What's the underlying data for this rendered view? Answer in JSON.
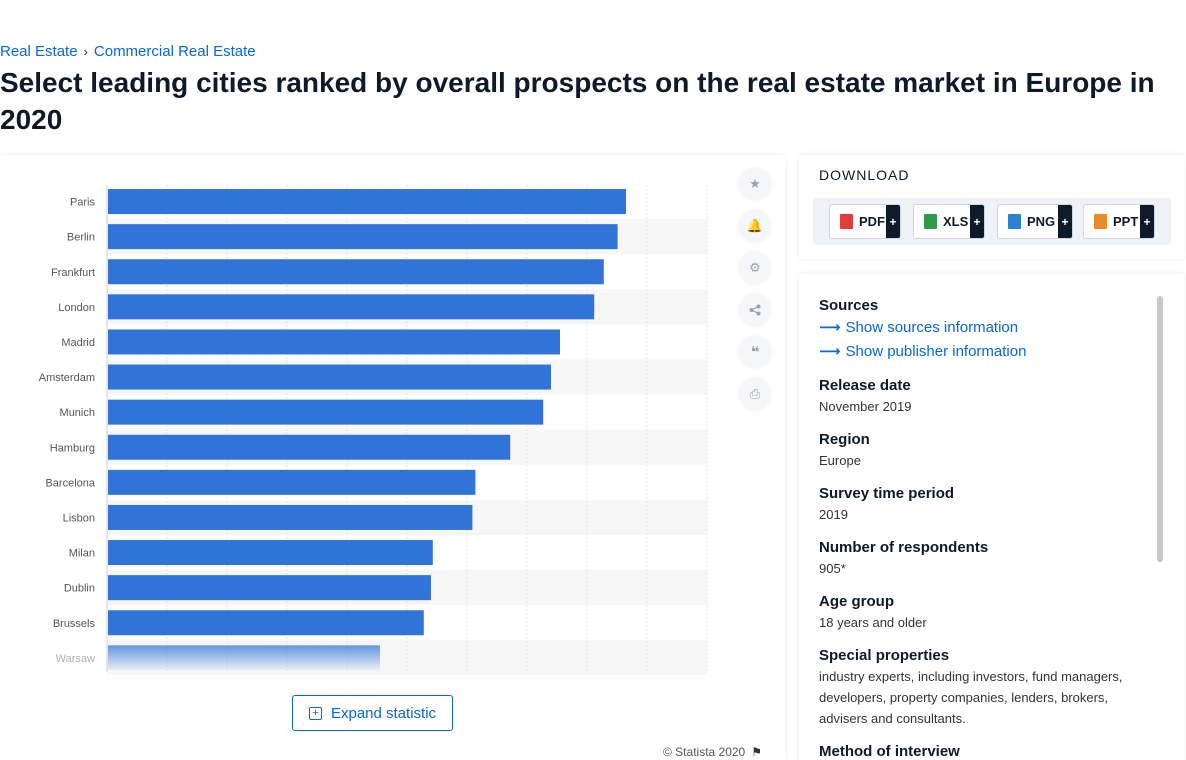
{
  "breadcrumb": {
    "items": [
      "Real Estate",
      "Commercial Real Estate"
    ],
    "separator": "›"
  },
  "page_title": "Select leading cities ranked by overall prospects on the real estate market in Europe in 2020",
  "toolbar": {
    "icons": [
      "star-icon",
      "bell-icon",
      "gear-icon",
      "share-icon",
      "quote-icon",
      "print-icon"
    ]
  },
  "expand_button": {
    "label": "Expand statistic",
    "icon": "plus-square-icon"
  },
  "copyright": {
    "text": "© Statista 2020",
    "icon": "flag-icon"
  },
  "download": {
    "title": "DOWNLOAD",
    "buttons": [
      {
        "label": "PDF",
        "color": "#e23c3c"
      },
      {
        "label": "XLS",
        "color": "#2e9b4a"
      },
      {
        "label": "PNG",
        "color": "#2f7fd3"
      },
      {
        "label": "PPT",
        "color": "#e8892a"
      }
    ],
    "plus": "+"
  },
  "info": {
    "sources_label": "Sources",
    "sources_link": "Show sources information",
    "publisher_link": "Show publisher information",
    "release_date_label": "Release date",
    "release_date_value": "November 2019",
    "region_label": "Region",
    "region_value": "Europe",
    "survey_label": "Survey time period",
    "survey_value": "2019",
    "respondents_label": "Number of respondents",
    "respondents_value": "905*",
    "age_label": "Age group",
    "age_value": "18 years and older",
    "special_label": "Special properties",
    "special_value": "industry experts, including investors, fund managers, developers, property companies, lenders, brokers, advisers and consultants.",
    "method_label": "Method of interview"
  },
  "chart_data": {
    "type": "bar",
    "orientation": "horizontal",
    "categories": [
      "Paris",
      "Berlin",
      "Frankfurt",
      "London",
      "Madrid",
      "Amsterdam",
      "Munich",
      "Hamburg",
      "Barcelona",
      "Lisbon",
      "Milan",
      "Dublin",
      "Brussels",
      "Warsaw"
    ],
    "values": [
      8.65,
      8.51,
      8.28,
      8.12,
      7.55,
      7.4,
      7.27,
      6.72,
      6.14,
      6.09,
      5.43,
      5.4,
      5.28,
      4.55
    ],
    "xlim": [
      0,
      10
    ],
    "grid": true,
    "bar_color": "#3174d8",
    "alt_row_color": "#f6f6f6",
    "title": "",
    "xlabel": "",
    "ylabel": ""
  }
}
